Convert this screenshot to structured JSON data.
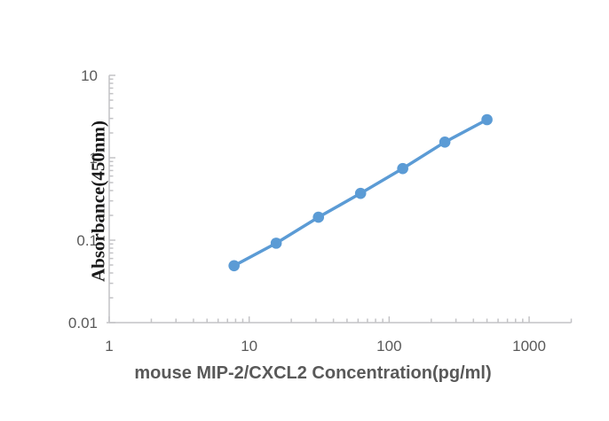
{
  "chart_data": {
    "type": "line",
    "xlabel": "mouse MIP-2/CXCL2 Concentration(pg/ml)",
    "ylabel": "Absorbance(450nm)",
    "x_scale": "log",
    "y_scale": "log",
    "xlim": [
      1,
      2000
    ],
    "ylim": [
      0.01,
      10
    ],
    "grid": false,
    "legend": false,
    "marker": "circle",
    "series": [
      {
        "x": [
          7.8,
          15.6,
          31.25,
          62.5,
          125,
          250,
          500
        ],
        "y": [
          0.049,
          0.092,
          0.19,
          0.37,
          0.74,
          1.55,
          2.9
        ],
        "color": "#5B9BD5"
      }
    ],
    "x_ticks": [
      1,
      10,
      100,
      1000
    ],
    "x_tick_labels": [
      "1",
      "10",
      "100",
      "1000"
    ],
    "y_ticks": [
      0.01,
      0.1,
      1,
      10
    ],
    "y_tick_labels": [
      "0.01",
      "0.1",
      "1",
      "10"
    ]
  },
  "colors": {
    "line": "#5B9BD5",
    "axis": "#C3C3C6",
    "tick_label": "#595959",
    "x_title": "#595959",
    "y_title": "#1A1A1A"
  }
}
